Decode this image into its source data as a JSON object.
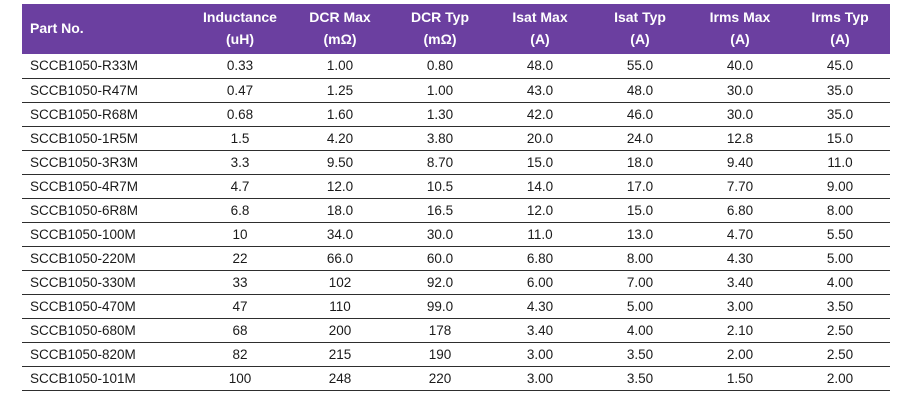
{
  "colors": {
    "header_bg": "#6B3FA0",
    "header_text": "#FFFFFF",
    "row_text": "#1A1A1A",
    "row_border": "#2E2E2E"
  },
  "table": {
    "columns": [
      {
        "label": "Part No.",
        "unit": ""
      },
      {
        "label": "Inductance",
        "unit": "(uH)"
      },
      {
        "label": "DCR Max",
        "unit": "(mΩ)"
      },
      {
        "label": "DCR Typ",
        "unit": "(mΩ)"
      },
      {
        "label": "Isat Max",
        "unit": "(A)"
      },
      {
        "label": "Isat Typ",
        "unit": "(A)"
      },
      {
        "label": "Irms Max",
        "unit": "(A)"
      },
      {
        "label": "Irms Typ",
        "unit": "(A)"
      }
    ],
    "rows": [
      [
        "SCCB1050-R33M",
        "0.33",
        "1.00",
        "0.80",
        "48.0",
        "55.0",
        "40.0",
        "45.0"
      ],
      [
        "SCCB1050-R47M",
        "0.47",
        "1.25",
        "1.00",
        "43.0",
        "48.0",
        "30.0",
        "35.0"
      ],
      [
        "SCCB1050-R68M",
        "0.68",
        "1.60",
        "1.30",
        "42.0",
        "46.0",
        "30.0",
        "35.0"
      ],
      [
        "SCCB1050-1R5M",
        "1.5",
        "4.20",
        "3.80",
        "20.0",
        "24.0",
        "12.8",
        "15.0"
      ],
      [
        "SCCB1050-3R3M",
        "3.3",
        "9.50",
        "8.70",
        "15.0",
        "18.0",
        "9.40",
        "11.0"
      ],
      [
        "SCCB1050-4R7M",
        "4.7",
        "12.0",
        "10.5",
        "14.0",
        "17.0",
        "7.70",
        "9.00"
      ],
      [
        "SCCB1050-6R8M",
        "6.8",
        "18.0",
        "16.5",
        "12.0",
        "15.0",
        "6.80",
        "8.00"
      ],
      [
        "SCCB1050-100M",
        "10",
        "34.0",
        "30.0",
        "11.0",
        "13.0",
        "4.70",
        "5.50"
      ],
      [
        "SCCB1050-220M",
        "22",
        "66.0",
        "60.0",
        "6.80",
        "8.00",
        "4.30",
        "5.00"
      ],
      [
        "SCCB1050-330M",
        "33",
        "102",
        "92.0",
        "6.00",
        "7.00",
        "3.40",
        "4.00"
      ],
      [
        "SCCB1050-470M",
        "47",
        "110",
        "99.0",
        "4.30",
        "5.00",
        "3.00",
        "3.50"
      ],
      [
        "SCCB1050-680M",
        "68",
        "200",
        "178",
        "3.40",
        "4.00",
        "2.10",
        "2.50"
      ],
      [
        "SCCB1050-820M",
        "82",
        "215",
        "190",
        "3.00",
        "3.50",
        "2.00",
        "2.50"
      ],
      [
        "SCCB1050-101M",
        "100",
        "248",
        "220",
        "3.00",
        "3.50",
        "1.50",
        "2.00"
      ]
    ]
  }
}
